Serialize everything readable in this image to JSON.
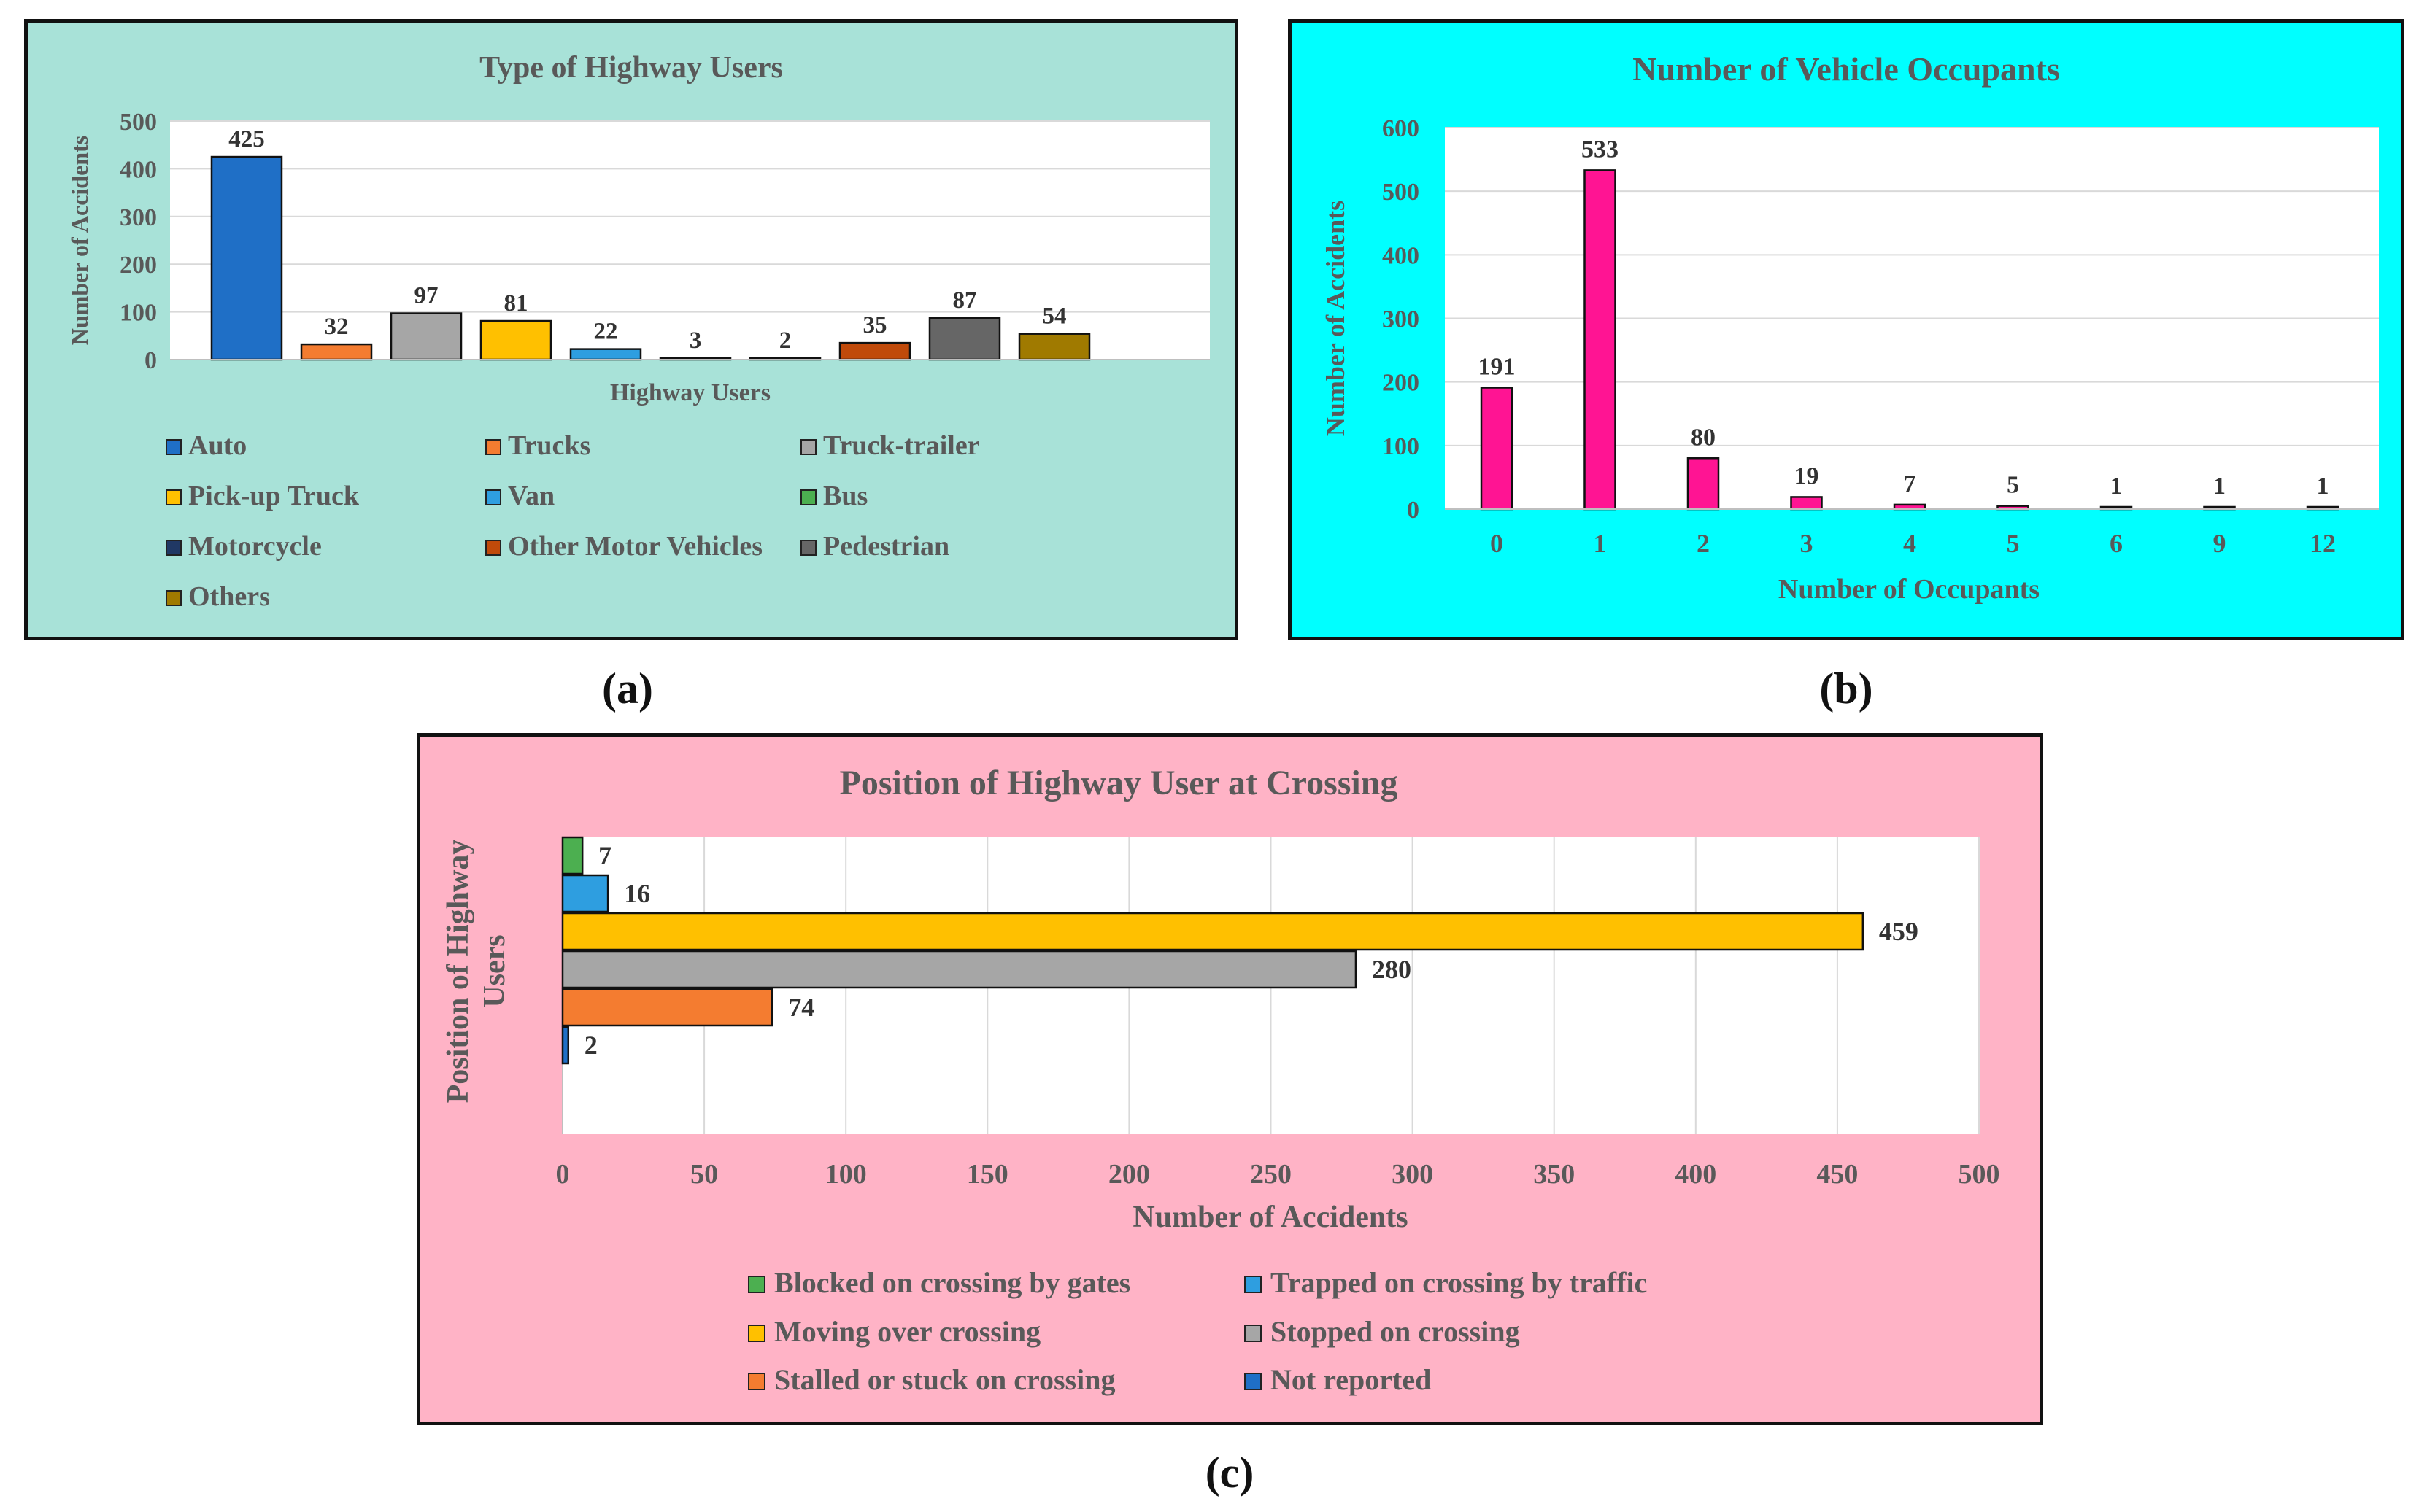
{
  "chart_data": [
    {
      "type": "bar",
      "panel_label": "(a)",
      "title": "Type of Highway Users",
      "xlabel": "Highway Users",
      "ylabel": "Number of Accidents",
      "ylim": [
        0,
        500
      ],
      "yticks": [
        0,
        100,
        200,
        300,
        400,
        500
      ],
      "grid": true,
      "background": "#a8e2d8",
      "legend_position": "bottom",
      "series": [
        {
          "name": "Auto",
          "value": 425,
          "color": "#1f6fc6"
        },
        {
          "name": "Trucks",
          "value": 32,
          "color": "#f47c30"
        },
        {
          "name": "Truck-trailer",
          "value": 97,
          "color": "#a6a6a6"
        },
        {
          "name": "Pick-up Truck",
          "value": 81,
          "color": "#ffc000"
        },
        {
          "name": "Van",
          "value": 22,
          "color": "#2e9ee0"
        },
        {
          "name": "Bus",
          "value": 3,
          "color": "#4caf50"
        },
        {
          "name": "Motorcycle",
          "value": 2,
          "color": "#203864"
        },
        {
          "name": "Other Motor Vehicles",
          "value": 35,
          "color": "#c04a0a"
        },
        {
          "name": "Pedestrian",
          "value": 87,
          "color": "#666666"
        },
        {
          "name": "Others",
          "value": 54,
          "color": "#a07a00"
        }
      ]
    },
    {
      "type": "bar",
      "panel_label": "(b)",
      "title": "Number of Vehicle Occupants",
      "xlabel": "Number of Occupants",
      "ylabel": "Number of Accidents",
      "ylim": [
        0,
        600
      ],
      "yticks": [
        0,
        100,
        200,
        300,
        400,
        500,
        600
      ],
      "grid": true,
      "background": "#00ffff",
      "bar_color": "#ff1493",
      "categories": [
        "0",
        "1",
        "2",
        "3",
        "4",
        "5",
        "6",
        "9",
        "12"
      ],
      "values": [
        191,
        533,
        80,
        19,
        7,
        5,
        1,
        1,
        1
      ]
    },
    {
      "type": "bar",
      "orientation": "horizontal",
      "panel_label": "(c)",
      "title": "Position of Highway User at Crossing",
      "xlabel": "Number of Accidents",
      "ylabel": "Position of Highway Users",
      "xlim": [
        0,
        500
      ],
      "xticks": [
        0,
        50,
        100,
        150,
        200,
        250,
        300,
        350,
        400,
        450,
        500
      ],
      "grid": true,
      "background": "#ffb3c6",
      "legend_position": "bottom",
      "series": [
        {
          "name": "Blocked on crossing by gates",
          "value": 7,
          "color": "#4caf50"
        },
        {
          "name": "Trapped on crossing by traffic",
          "value": 16,
          "color": "#2e9ee0"
        },
        {
          "name": "Moving over crossing",
          "value": 459,
          "color": "#ffc000"
        },
        {
          "name": "Stopped on crossing",
          "value": 280,
          "color": "#a6a6a6"
        },
        {
          "name": "Stalled or stuck on crossing",
          "value": 74,
          "color": "#f47c30"
        },
        {
          "name": "Not reported",
          "value": 2,
          "color": "#1f6fc6"
        }
      ]
    }
  ]
}
